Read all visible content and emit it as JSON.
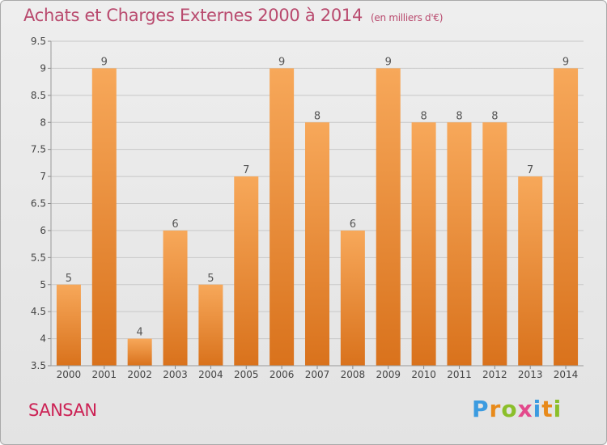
{
  "header": {
    "title": "Achats et Charges Externes 2000 à 2014",
    "unit": "(en milliers d'€)"
  },
  "footer": {
    "place": "SANSAN",
    "brand_letters": [
      "P",
      "r",
      "o",
      "x",
      "i",
      "t",
      "i"
    ]
  },
  "colors": {
    "bar_top": "#f7a85a",
    "bar_bottom": "#d9721c",
    "title": "#b94a6e",
    "place": "#cc2255",
    "grid": "#c8c8c8"
  },
  "chart_data": {
    "type": "bar",
    "title": "Achats et Charges Externes 2000 à 2014",
    "subtitle": "(en milliers d'€)",
    "categories": [
      "2000",
      "2001",
      "2002",
      "2003",
      "2004",
      "2005",
      "2006",
      "2007",
      "2008",
      "2009",
      "2010",
      "2011",
      "2012",
      "2013",
      "2014"
    ],
    "values": [
      5,
      9,
      4,
      6,
      5,
      7,
      9,
      8,
      6,
      9,
      8,
      8,
      8,
      7,
      9
    ],
    "value_labels": [
      "5",
      "9",
      "4",
      "6",
      "5",
      "7",
      "9",
      "8",
      "6",
      "9",
      "8",
      "8",
      "8",
      "7",
      "9"
    ],
    "ylim": [
      3.5,
      9.5
    ],
    "yticks": [
      "3.5",
      "4",
      "4.5",
      "5",
      "5.5",
      "6",
      "6.5",
      "7",
      "7.5",
      "8",
      "8.5",
      "9",
      "9.5"
    ],
    "xlabel": "",
    "ylabel": "",
    "grid": true,
    "legend": "none"
  }
}
